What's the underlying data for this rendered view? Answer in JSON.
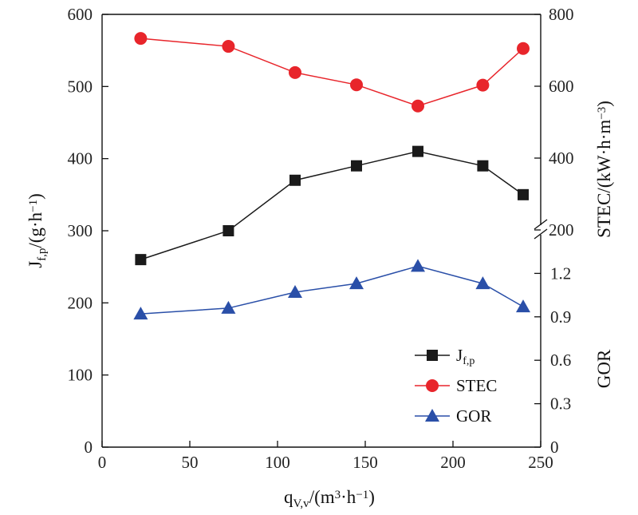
{
  "chart_data": {
    "type": "line",
    "x": [
      22,
      72,
      110,
      145,
      180,
      217,
      240
    ],
    "xlim": [
      0,
      250
    ],
    "xticks": [
      0,
      50,
      100,
      150,
      200,
      250
    ],
    "xlabel": "q<sub>V,v</sub>/(m<sup>3</sup>·h<sup>−1</sup>)",
    "left_axis": {
      "ylabel": "J<sub>f,p</sub>/(g·h<sup>−1</sup>)",
      "ylim": [
        0,
        600
      ],
      "ticks": [
        0,
        100,
        200,
        300,
        400,
        500,
        600
      ]
    },
    "right_axis_upper": {
      "ylabel": "STEC/(kW·h·m<sup>−3</sup>)",
      "ylim": [
        200,
        800
      ],
      "ticks": [
        200,
        400,
        600,
        800
      ],
      "broken": true
    },
    "right_axis_lower": {
      "ylabel": "GOR",
      "ylim": [
        0,
        1.5
      ],
      "ticks": [
        "0",
        "0.3",
        "0.6",
        "0.9",
        "1.2"
      ]
    },
    "series": [
      {
        "name": "J<sub>f,p</sub>",
        "axis": "left",
        "marker": "square",
        "color": "#1a1a1a",
        "values": [
          260,
          300,
          370,
          390,
          410,
          390,
          350
        ]
      },
      {
        "name": "STEC",
        "axis": "right_upper",
        "marker": "circle",
        "color": "#e8252b",
        "values": [
          733,
          711,
          638,
          604,
          545,
          603,
          705
        ]
      },
      {
        "name": "GOR",
        "axis": "right_lower",
        "marker": "triangle",
        "color": "#2a4fa8",
        "values": [
          0.92,
          0.96,
          1.07,
          1.13,
          1.25,
          1.13,
          0.97
        ]
      }
    ],
    "legend": {
      "position": "bottom-right",
      "entries": [
        "J<sub>f,p</sub>",
        "STEC",
        "GOR"
      ]
    },
    "grid": false
  }
}
